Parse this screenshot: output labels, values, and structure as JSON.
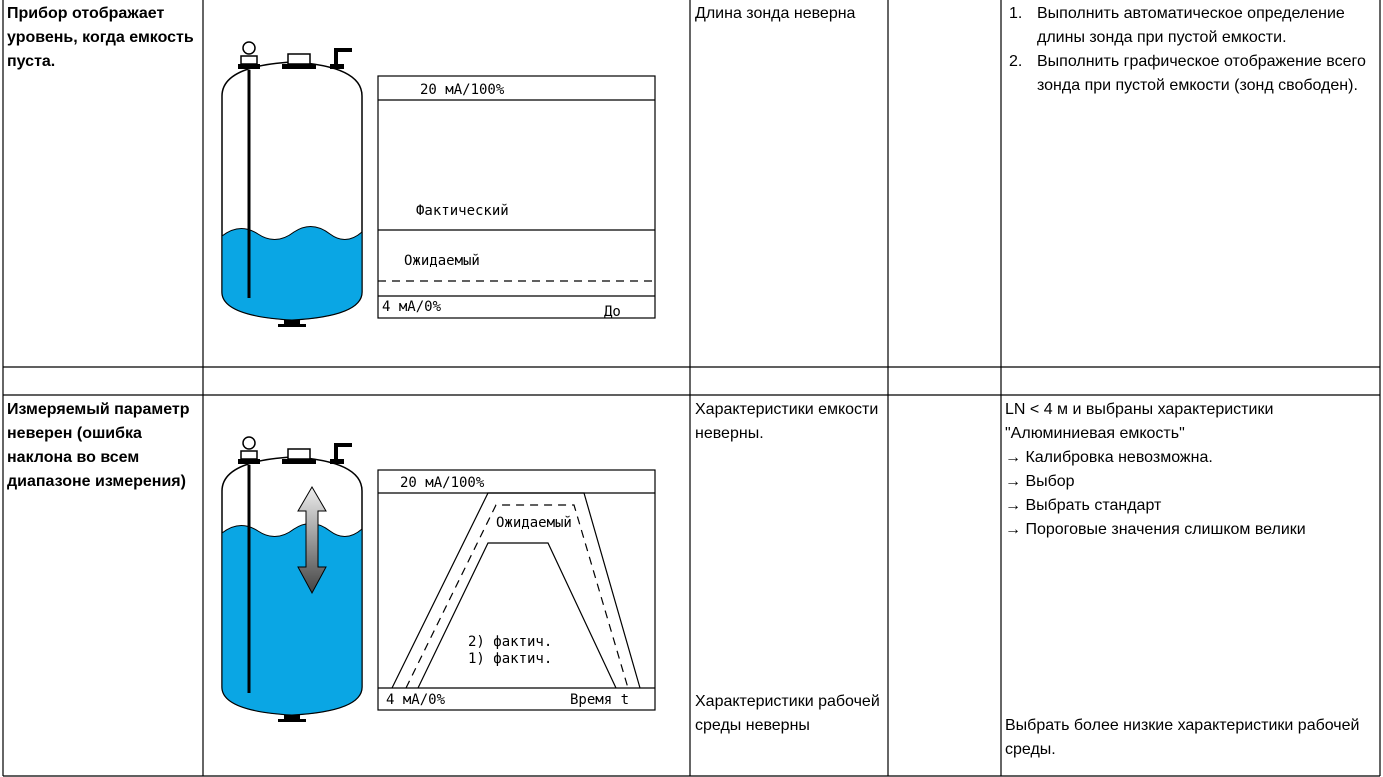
{
  "rows": [
    {
      "problem": "Прибор отображает уровень, когда емкость пуста.",
      "diagram": {
        "top": "20 мА/100%",
        "actual": "Фактический",
        "expected": "Ожидаемый",
        "bottom": "4 мА/0%",
        "axis": "До"
      },
      "cause": "Длина зонда неверна",
      "remedy": [
        {
          "number": "1.",
          "text": "Выполнить автоматическое определение длины зонда при пустой емкости."
        },
        {
          "number": "2.",
          "text": "Выполнить графическое отображение всего зонда при пустой емкости (зонд свободен)."
        }
      ]
    },
    {
      "problem": "Измеряемый параметр неверен (ошибка наклона во всем диапазоне измерения)",
      "diagram": {
        "top": "20 мА/100%",
        "expected": "Ожидаемый",
        "actual2": "2) фактич.",
        "actual1": "1) фактич.",
        "bottom": "4 мА/0%",
        "axis": "Время t"
      },
      "causes": [
        "Характеристики емкости неверны.",
        "Характеристики рабочей среды неверны"
      ],
      "remedies": [
        [
          "LN < 4 м и выбраны характеристики \"Алюминиевая емкость\"",
          "→ Калибровка невозможна.",
          "→ Выбор",
          "→ Выбрать стандарт",
          "→ Пороговые значения слишком велики"
        ],
        "Выбрать более низкие характеристики рабочей среды."
      ]
    }
  ]
}
